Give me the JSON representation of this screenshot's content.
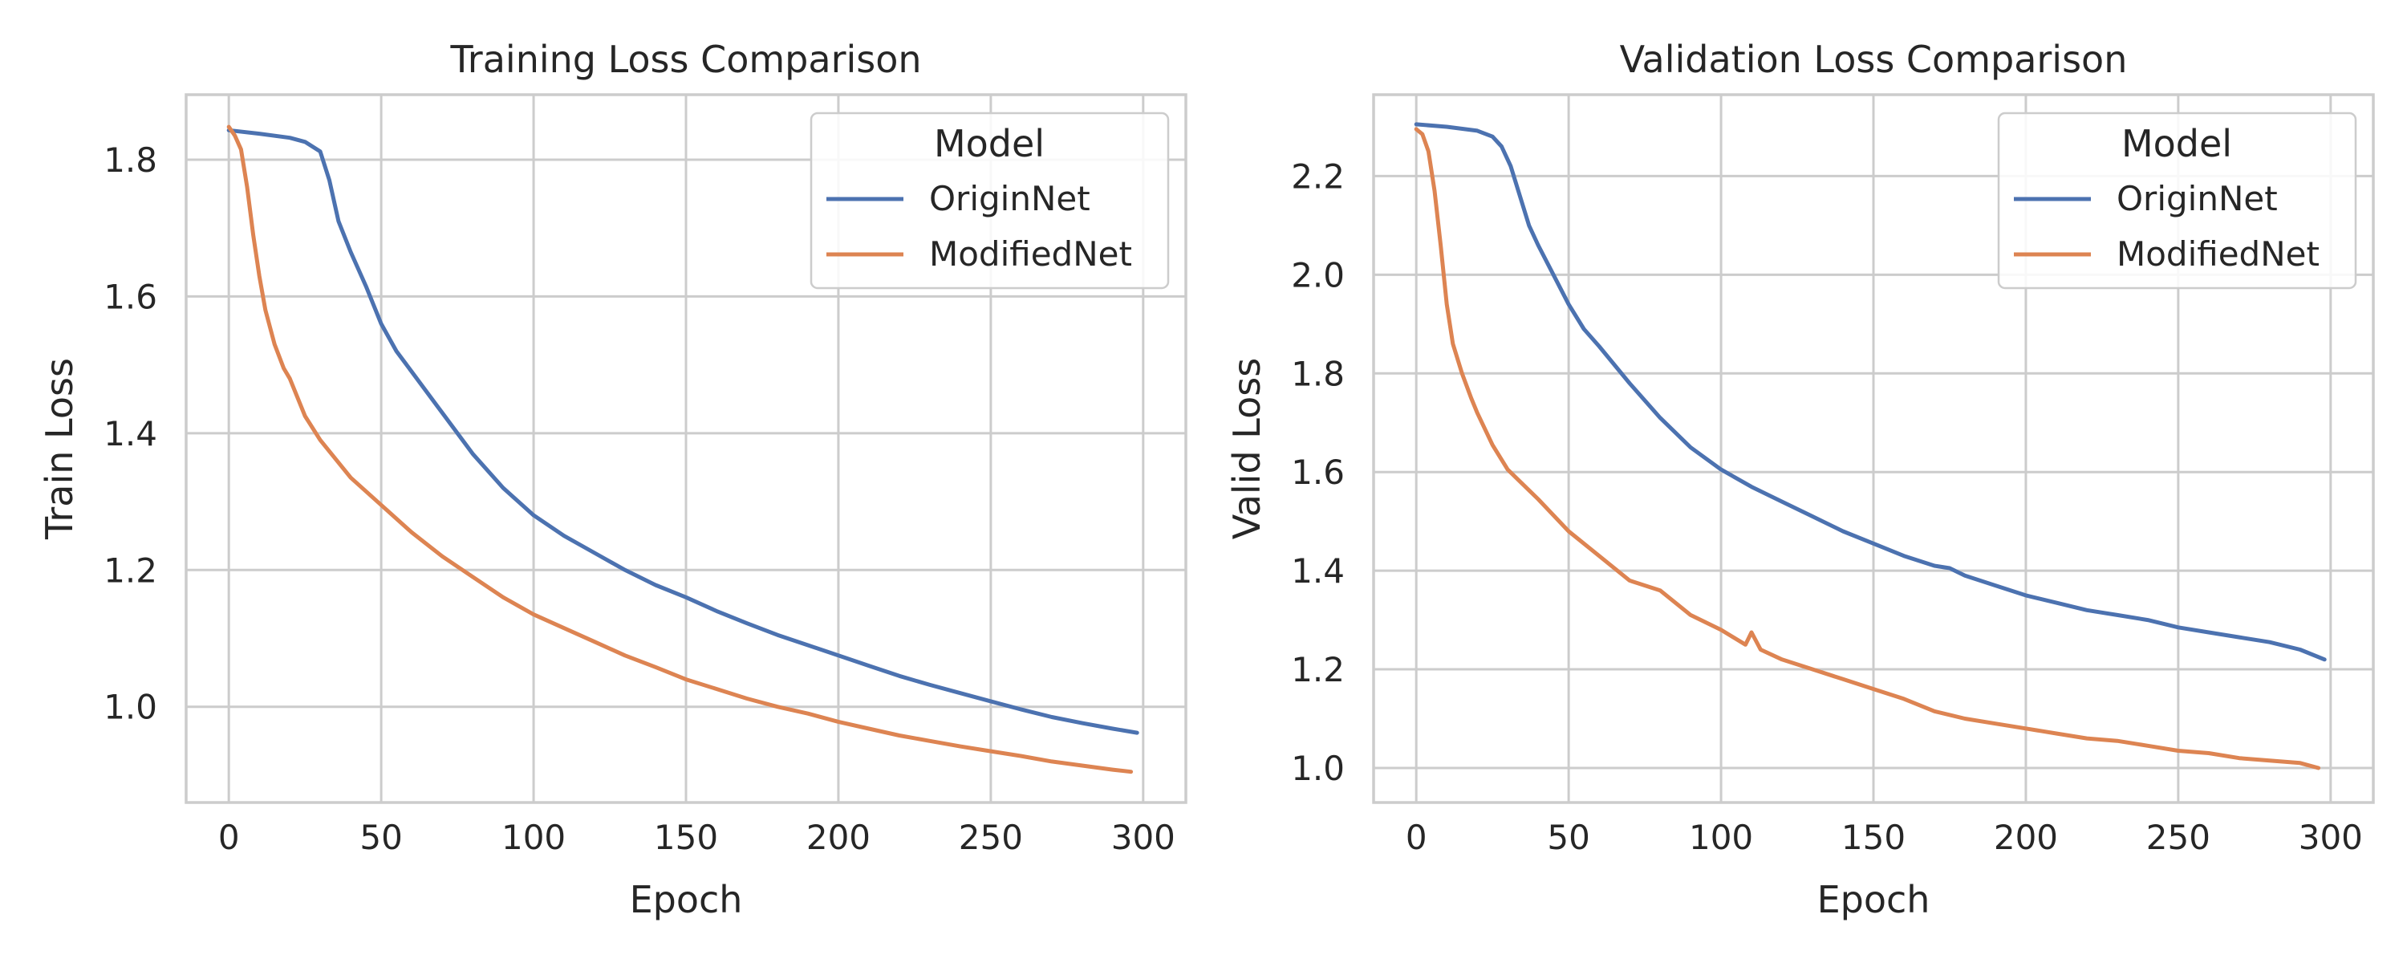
{
  "chart_data": [
    {
      "type": "line",
      "title": "Training Loss Comparison",
      "xlabel": "Epoch",
      "ylabel": "Train Loss",
      "xlim": [
        -14,
        314
      ],
      "ylim": [
        0.86,
        1.895
      ],
      "xticks": [
        0,
        50,
        100,
        150,
        200,
        250,
        300
      ],
      "xtick_labels": [
        "0",
        "50",
        "100",
        "150",
        "200",
        "250",
        "300"
      ],
      "yticks": [
        1.0,
        1.2,
        1.4,
        1.6,
        1.8
      ],
      "ytick_labels": [
        "1.0",
        "1.2",
        "1.4",
        "1.6",
        "1.8"
      ],
      "grid": true,
      "legend": {
        "title": "Model",
        "placement": "upper right"
      },
      "series": [
        {
          "name": "OriginNet",
          "color": "#4c72b0",
          "x": [
            0,
            10,
            20,
            25,
            30,
            33,
            36,
            40,
            45,
            50,
            55,
            60,
            70,
            80,
            90,
            100,
            110,
            120,
            130,
            140,
            150,
            160,
            170,
            180,
            190,
            200,
            210,
            220,
            230,
            240,
            250,
            260,
            270,
            280,
            290,
            298
          ],
          "y": [
            1.843,
            1.838,
            1.832,
            1.826,
            1.812,
            1.77,
            1.71,
            1.665,
            1.615,
            1.56,
            1.52,
            1.49,
            1.43,
            1.37,
            1.32,
            1.28,
            1.25,
            1.225,
            1.2,
            1.178,
            1.16,
            1.14,
            1.122,
            1.105,
            1.09,
            1.075,
            1.06,
            1.045,
            1.032,
            1.02,
            1.008,
            0.996,
            0.985,
            0.976,
            0.968,
            0.962
          ]
        },
        {
          "name": "ModifiedNet",
          "color": "#dd8452",
          "x": [
            0,
            2,
            4,
            6,
            8,
            10,
            12,
            15,
            18,
            20,
            25,
            30,
            40,
            50,
            60,
            70,
            80,
            90,
            100,
            110,
            120,
            130,
            140,
            150,
            160,
            170,
            180,
            190,
            200,
            210,
            220,
            230,
            240,
            250,
            260,
            270,
            280,
            290,
            296
          ],
          "y": [
            1.848,
            1.835,
            1.815,
            1.76,
            1.69,
            1.63,
            1.58,
            1.53,
            1.495,
            1.48,
            1.425,
            1.39,
            1.335,
            1.295,
            1.255,
            1.22,
            1.19,
            1.16,
            1.135,
            1.115,
            1.095,
            1.075,
            1.058,
            1.04,
            1.026,
            1.012,
            1.0,
            0.99,
            0.978,
            0.968,
            0.958,
            0.95,
            0.942,
            0.935,
            0.928,
            0.92,
            0.914,
            0.908,
            0.905
          ]
        }
      ]
    },
    {
      "type": "line",
      "title": "Validation Loss Comparison",
      "xlabel": "Epoch",
      "ylabel": "Valid Loss",
      "xlim": [
        -14,
        314
      ],
      "ylim": [
        0.93,
        2.365
      ],
      "xticks": [
        0,
        50,
        100,
        150,
        200,
        250,
        300
      ],
      "xtick_labels": [
        "0",
        "50",
        "100",
        "150",
        "200",
        "250",
        "300"
      ],
      "yticks": [
        1.0,
        1.2,
        1.4,
        1.6,
        1.8,
        2.0,
        2.2
      ],
      "ytick_labels": [
        "1.0",
        "1.2",
        "1.4",
        "1.6",
        "1.8",
        "2.0",
        "2.2"
      ],
      "grid": true,
      "legend": {
        "title": "Model",
        "placement": "upper right"
      },
      "series": [
        {
          "name": "OriginNet",
          "color": "#4c72b0",
          "x": [
            0,
            10,
            20,
            25,
            28,
            31,
            34,
            37,
            40,
            45,
            50,
            55,
            60,
            70,
            80,
            90,
            100,
            110,
            120,
            130,
            140,
            150,
            160,
            170,
            175,
            180,
            190,
            200,
            210,
            220,
            230,
            240,
            250,
            260,
            270,
            280,
            290,
            298
          ],
          "y": [
            2.305,
            2.3,
            2.292,
            2.28,
            2.26,
            2.22,
            2.16,
            2.1,
            2.06,
            2.0,
            1.94,
            1.89,
            1.855,
            1.78,
            1.71,
            1.65,
            1.605,
            1.57,
            1.54,
            1.51,
            1.48,
            1.455,
            1.43,
            1.41,
            1.405,
            1.39,
            1.37,
            1.35,
            1.335,
            1.32,
            1.31,
            1.3,
            1.285,
            1.275,
            1.265,
            1.255,
            1.24,
            1.22
          ]
        },
        {
          "name": "ModifiedNet",
          "color": "#dd8452",
          "x": [
            0,
            2,
            4,
            6,
            8,
            10,
            12,
            15,
            18,
            20,
            25,
            30,
            40,
            50,
            60,
            70,
            80,
            90,
            100,
            108,
            110,
            113,
            120,
            130,
            140,
            150,
            160,
            170,
            180,
            190,
            200,
            210,
            220,
            230,
            240,
            250,
            260,
            270,
            280,
            290,
            296
          ],
          "y": [
            2.295,
            2.285,
            2.25,
            2.17,
            2.06,
            1.94,
            1.86,
            1.8,
            1.75,
            1.72,
            1.655,
            1.605,
            1.545,
            1.48,
            1.43,
            1.38,
            1.36,
            1.31,
            1.28,
            1.25,
            1.275,
            1.24,
            1.22,
            1.2,
            1.18,
            1.16,
            1.14,
            1.115,
            1.1,
            1.09,
            1.08,
            1.07,
            1.06,
            1.055,
            1.045,
            1.035,
            1.03,
            1.02,
            1.015,
            1.01,
            1.0
          ]
        }
      ]
    }
  ]
}
